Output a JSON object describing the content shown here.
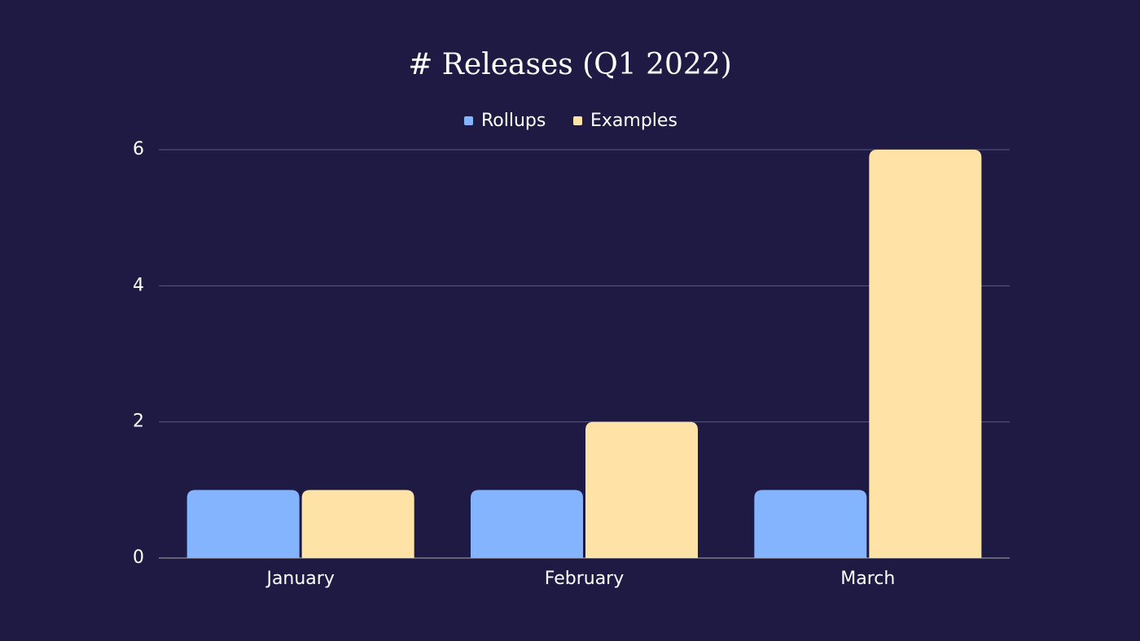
{
  "chart_data": {
    "type": "bar",
    "title": "# Releases (Q1 2022)",
    "categories": [
      "January",
      "February",
      "March"
    ],
    "series": [
      {
        "name": "Rollups",
        "color": "#85b4ff",
        "values": [
          1,
          1,
          1
        ]
      },
      {
        "name": "Examples",
        "color": "#ffe2a6",
        "values": [
          1,
          2,
          6
        ]
      }
    ],
    "ylim": [
      0,
      6
    ],
    "yticks": [
      0,
      2,
      4,
      6
    ],
    "grid": true,
    "legend": "top"
  }
}
